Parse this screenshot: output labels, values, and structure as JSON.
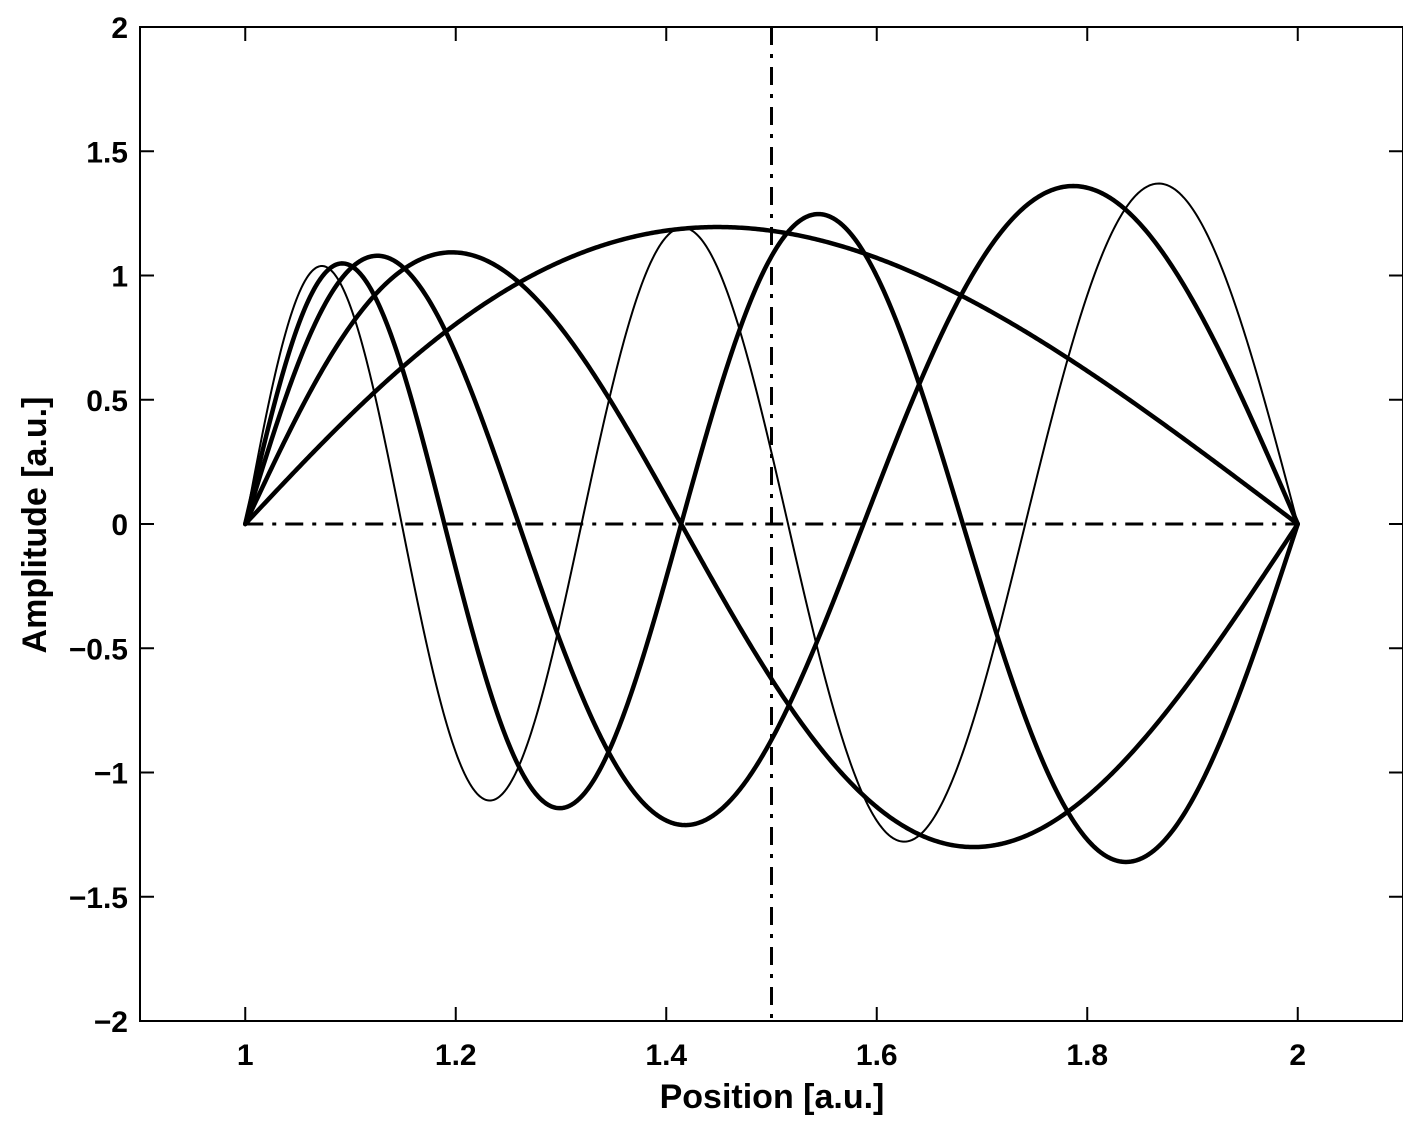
{
  "chart_data": {
    "type": "line",
    "title": "",
    "xlabel": "Position [a.u.]",
    "ylabel": "Amplitude [a.u.]",
    "xlim": [
      0.9,
      2.1
    ],
    "ylim": [
      -2,
      2
    ],
    "x_ticks": [
      1,
      1.2,
      1.4,
      1.6,
      1.8,
      2
    ],
    "x_tick_labels": [
      "1",
      "1.2",
      "1.4",
      "1.6",
      "1.8",
      "2"
    ],
    "y_ticks": [
      2,
      1.5,
      1,
      0.5,
      0,
      -0.5,
      -1,
      -1.5,
      -2
    ],
    "y_tick_labels": [
      "2",
      "1.5",
      "1",
      "0.5",
      "0",
      "−0.5",
      "−1",
      "−1.5",
      "−2"
    ],
    "grid": false,
    "line_color": "#000000",
    "description_of_series": "Eigenmodes on [1,2]: amplitude k-th mode ~ sin(k*pi*(ln x)/ln 2) scaled by sqrt(x)",
    "series": [
      {
        "mode": 1,
        "amplitude": 1.195,
        "style": "thick",
        "x": [
          1.0,
          1.1,
          1.2,
          1.3,
          1.4,
          1.455,
          1.5,
          1.6,
          1.7,
          1.8,
          1.9,
          2.0
        ],
        "y": [
          0.0,
          0.49,
          0.86,
          1.08,
          1.18,
          1.195,
          1.18,
          1.05,
          0.83,
          0.57,
          0.29,
          0.0
        ]
      },
      {
        "mode": 2,
        "amplitude": 1.3,
        "style": "thick",
        "x": [
          1.0,
          1.1,
          1.195,
          1.3,
          1.414,
          1.5,
          1.6,
          1.695,
          1.8,
          1.9,
          2.0
        ],
        "y": [
          0.0,
          0.87,
          1.09,
          0.75,
          0.0,
          -0.62,
          -1.12,
          -1.3,
          -1.12,
          -0.61,
          0.0
        ]
      },
      {
        "mode": 3,
        "amplitude": 1.36,
        "style": "thick",
        "x": [
          1.0,
          1.06,
          1.125,
          1.2,
          1.26,
          1.3,
          1.4,
          1.414,
          1.5,
          1.545,
          1.6,
          1.7,
          1.785,
          1.9,
          2.0
        ],
        "y": [
          0.0,
          0.86,
          1.06,
          0.55,
          0.0,
          -0.35,
          -1.17,
          -1.19,
          -0.35,
          1.24,
          0.96,
          0.0,
          1.34,
          0.85,
          0.0
        ]
      },
      {
        "mode": 4,
        "amplitude": 1.36,
        "style": "thick",
        "x": [
          1.0,
          1.09,
          1.19,
          1.3,
          1.414,
          1.545,
          1.68,
          1.84,
          2.0
        ],
        "y": [
          0.0,
          1.05,
          0.0,
          -1.13,
          0.0,
          1.24,
          0.0,
          -1.36,
          0.0
        ]
      },
      {
        "mode": 5,
        "amplitude": 1.37,
        "style": "thin",
        "x": [
          1.0,
          1.072,
          1.149,
          1.232,
          1.32,
          1.414,
          1.516,
          1.625,
          1.741,
          1.866,
          2.0
        ],
        "y": [
          0.0,
          1.03,
          0.0,
          -1.11,
          0.0,
          1.19,
          0.0,
          -1.28,
          0.0,
          1.37,
          0.0
        ]
      }
    ],
    "reference_lines": [
      {
        "orientation": "horizontal",
        "value": 0,
        "x_range": [
          1,
          2
        ],
        "style": "dash-dot"
      },
      {
        "orientation": "vertical",
        "value": 1.5,
        "style": "dash-dot"
      }
    ]
  }
}
